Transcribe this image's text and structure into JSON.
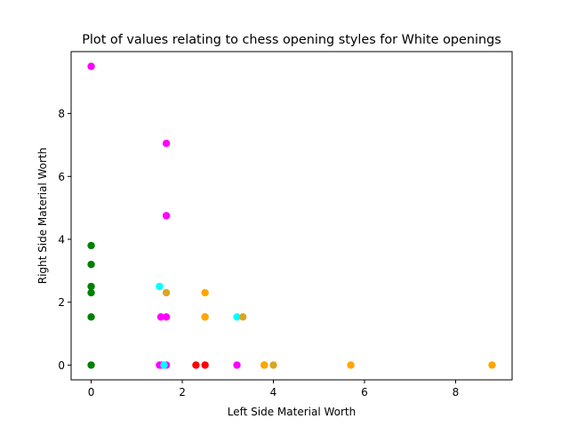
{
  "chart_data": {
    "type": "scatter",
    "title": "Plot of values relating to chess opening styles for White openings",
    "xlabel": "Left Side Material Worth",
    "ylabel": "Right Side Material Worth",
    "xlim": [
      -0.44,
      9.24
    ],
    "ylim": [
      -0.47,
      9.97
    ],
    "xticks": [
      0,
      2,
      4,
      6,
      8
    ],
    "yticks": [
      0,
      2,
      4,
      6,
      8
    ],
    "grid": false,
    "legend": "none",
    "series": [
      {
        "color": "#008000",
        "points": [
          [
            0,
            3.8
          ],
          [
            0,
            3.2
          ],
          [
            0,
            2.5
          ],
          [
            0,
            2.3
          ],
          [
            0,
            1.53
          ],
          [
            0,
            0
          ]
        ]
      },
      {
        "color": "#ff00ff",
        "points": [
          [
            0,
            9.5
          ],
          [
            1.65,
            7.05
          ],
          [
            1.65,
            4.75
          ],
          [
            1.53,
            1.53
          ],
          [
            1.65,
            1.53
          ],
          [
            1.5,
            0
          ],
          [
            1.55,
            0
          ],
          [
            1.65,
            0
          ],
          [
            3.2,
            0
          ]
        ]
      },
      {
        "color": "#00ffff",
        "points": [
          [
            1.5,
            2.5
          ],
          [
            3.2,
            1.53
          ],
          [
            1.6,
            0
          ]
        ]
      },
      {
        "color": "#daa520",
        "points": [
          [
            1.65,
            2.3
          ],
          [
            2.5,
            1.53
          ],
          [
            3.33,
            1.53
          ],
          [
            3.8,
            0
          ],
          [
            4.0,
            0
          ]
        ]
      },
      {
        "color": "#ffa500",
        "points": [
          [
            2.5,
            2.3
          ],
          [
            2.5,
            1.53
          ],
          [
            3.8,
            0
          ],
          [
            5.7,
            0
          ],
          [
            8.8,
            0
          ]
        ]
      },
      {
        "color": "#ff0000",
        "points": [
          [
            2.3,
            0
          ],
          [
            2.5,
            0
          ]
        ]
      }
    ]
  }
}
